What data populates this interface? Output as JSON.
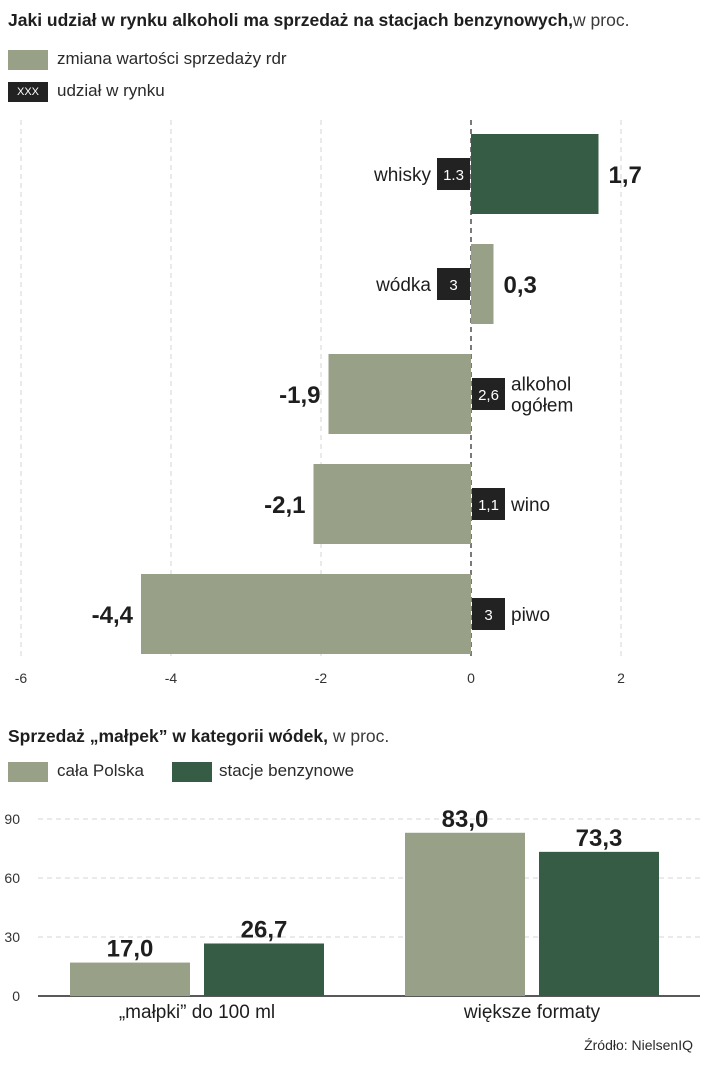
{
  "chart_data": [
    {
      "type": "bar",
      "orientation": "horizontal",
      "title": "Jaki udział w rynku alkoholi ma sprzedaż na stacjach benzynowych,",
      "title_unit": "w proc.",
      "legend": {
        "value_label": "zmiana wartości sprzedaży rdr",
        "share_label": "udział w rynku",
        "share_swatch_text": "XXX"
      },
      "categories": [
        "whisky",
        "wódka",
        "alkohol ogółem",
        "wino",
        "piwo"
      ],
      "category_lines": [
        [
          "whisky"
        ],
        [
          "wódka"
        ],
        [
          "alkohol",
          "ogółem"
        ],
        [
          "wino"
        ],
        [
          "piwo"
        ]
      ],
      "values": [
        1.7,
        0.3,
        -1.9,
        -2.1,
        -4.4
      ],
      "value_labels": [
        "1,7",
        "0,3",
        "-1,9",
        "-2,1",
        "-4,4"
      ],
      "market_share": [
        1.3,
        3,
        2.6,
        1.1,
        3
      ],
      "market_share_labels": [
        "1.3",
        "3",
        "2,6",
        "1,1",
        "3"
      ],
      "xlim": [
        -6,
        2
      ],
      "xticks": [
        -6,
        -4,
        -2,
        0,
        2
      ],
      "xtick_labels": [
        "-6",
        "-4",
        "-2",
        "0",
        "2"
      ],
      "grid": true
    },
    {
      "type": "bar",
      "title": "Sprzedaż „małpek” w kategorii wódek,",
      "title_unit": "w proc.",
      "categories": [
        "„małpki” do 100 ml",
        "większe formaty"
      ],
      "series": [
        {
          "name": "cała Polska",
          "values": [
            17.0,
            83.0
          ],
          "labels": [
            "17,0",
            "83,0"
          ]
        },
        {
          "name": "stacje benzynowe",
          "values": [
            26.7,
            73.3
          ],
          "labels": [
            "26,7",
            "73,3"
          ]
        }
      ],
      "ylim": [
        0,
        90
      ],
      "yticks": [
        0,
        30,
        60,
        90
      ],
      "ytick_labels": [
        "0",
        "30",
        "60",
        "90"
      ],
      "grid": true
    }
  ],
  "source": "Źródło: NielsenIQ",
  "colors": {
    "light_green": "#98a188",
    "dark_green": "#365c46",
    "share_box": "#222222",
    "grid": "#d4d4d4",
    "axis": "#222222"
  }
}
